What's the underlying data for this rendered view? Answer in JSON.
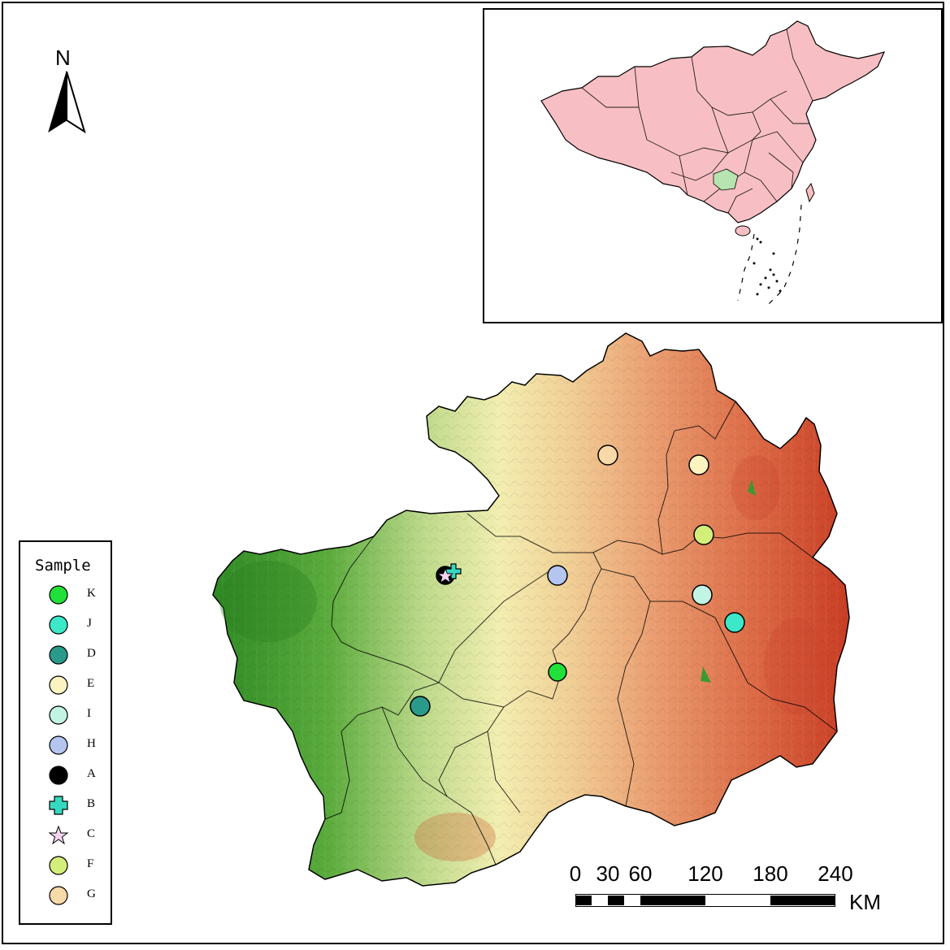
{
  "map": {
    "north_label": "N",
    "colors": {
      "low_elevation": "#3f9a2e",
      "mid_elevation": "#f2eeb0",
      "high_elevation": "#d24a2a",
      "china_fill": "#f7bfc3",
      "guizhou_highlight": "#b7e4b0"
    }
  },
  "legend": {
    "title": "Sample",
    "items": [
      {
        "label": "K",
        "symbol": "circle",
        "color": "#22e03a"
      },
      {
        "label": "J",
        "symbol": "circle",
        "color": "#3ce8c8"
      },
      {
        "label": "D",
        "symbol": "circle",
        "color": "#2a9a8a"
      },
      {
        "label": "E",
        "symbol": "circle",
        "color": "#fbf3c0"
      },
      {
        "label": "I",
        "symbol": "circle",
        "color": "#c2f4e4"
      },
      {
        "label": "H",
        "symbol": "circle",
        "color": "#b4c6f0"
      },
      {
        "label": "A",
        "symbol": "circle",
        "color": "#000000"
      },
      {
        "label": "B",
        "symbol": "cross",
        "color": "#36d8c0"
      },
      {
        "label": "C",
        "symbol": "star",
        "color": "#f2d4f0"
      },
      {
        "label": "F",
        "symbol": "circle",
        "color": "#d4ee7a"
      },
      {
        "label": "G",
        "symbol": "circle",
        "color": "#f8d9a8"
      }
    ]
  },
  "sample_points": [
    {
      "label": "G",
      "color": "#f8d9a8"
    },
    {
      "label": "E",
      "color": "#fbf3c0"
    },
    {
      "label": "F",
      "color": "#d4ee7a"
    },
    {
      "label": "A",
      "color": "#000000"
    },
    {
      "label": "B",
      "color": "#36d8c0"
    },
    {
      "label": "C",
      "color": "#f2d4f0"
    },
    {
      "label": "H",
      "color": "#b4c6f0"
    },
    {
      "label": "I",
      "color": "#c2f4e4"
    },
    {
      "label": "J",
      "color": "#3ce8c8"
    },
    {
      "label": "K",
      "color": "#22e03a"
    },
    {
      "label": "D",
      "color": "#2a9a8a"
    }
  ],
  "scale_bar": {
    "ticks": [
      "0",
      "30",
      "60",
      "120",
      "180",
      "240"
    ],
    "unit": "KM"
  }
}
